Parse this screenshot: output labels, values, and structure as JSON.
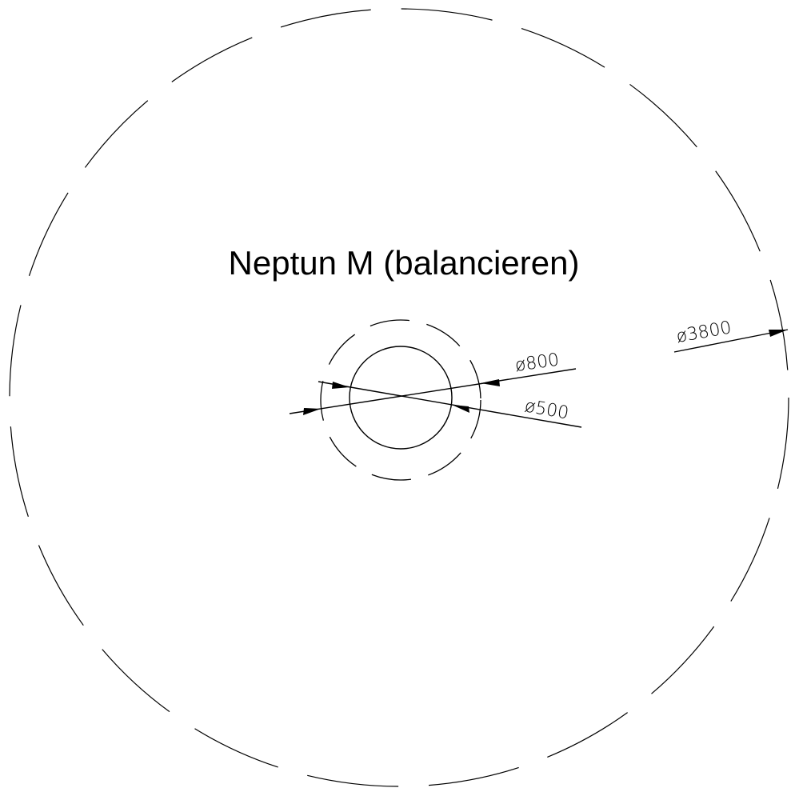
{
  "title": "Neptun M  (balancieren)",
  "dimensions": {
    "outer": "ø3800",
    "middle": "ø800",
    "inner": "ø500"
  },
  "colors": {
    "line": "#000000",
    "background": "#ffffff"
  }
}
